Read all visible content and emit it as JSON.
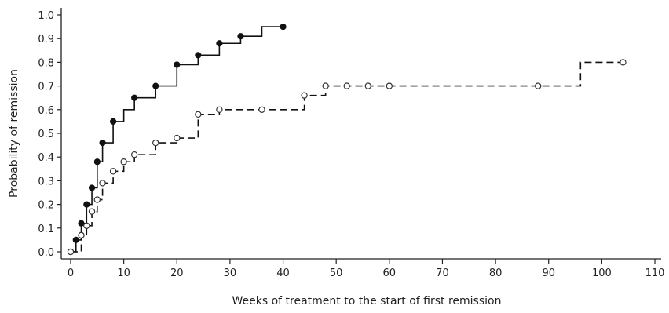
{
  "chart_data": {
    "type": "line",
    "step": true,
    "title": "",
    "xlabel": "Weeks of treatment to the start of first remission",
    "ylabel": "Probability of remission",
    "xlim": [
      0,
      110
    ],
    "ylim": [
      0,
      1.0
    ],
    "xticks": [
      0,
      10,
      20,
      30,
      40,
      50,
      60,
      70,
      80,
      90,
      100,
      110
    ],
    "yticks": [
      0.0,
      0.1,
      0.2,
      0.3,
      0.4,
      0.5,
      0.6,
      0.7,
      0.8,
      0.9,
      1.0
    ],
    "xtick_labels": [
      "0",
      "10",
      "20",
      "30",
      "40",
      "50",
      "60",
      "70",
      "80",
      "90",
      "100",
      "110"
    ],
    "ytick_labels": [
      "0.0",
      "0.1",
      "0.2",
      "0.3",
      "0.4",
      "0.5",
      "0.6",
      "0.7",
      "0.8",
      "0.9",
      "1.0"
    ],
    "grid": false,
    "series": [
      {
        "line_style": "solid",
        "marker": "filled-circle",
        "color": "#111111",
        "x": [
          0,
          1,
          2,
          3,
          4,
          5,
          6,
          8,
          10,
          12,
          16,
          20,
          24,
          28,
          32,
          36,
          40
        ],
        "y": [
          0.0,
          0.05,
          0.12,
          0.2,
          0.27,
          0.38,
          0.46,
          0.55,
          0.6,
          0.65,
          0.7,
          0.79,
          0.83,
          0.88,
          0.91,
          0.95,
          0.95
        ],
        "markers_x": [
          1,
          2,
          3,
          4,
          5,
          6,
          8,
          12,
          16,
          20,
          24,
          28,
          32,
          40
        ],
        "markers_y": [
          0.05,
          0.12,
          0.2,
          0.27,
          0.38,
          0.46,
          0.55,
          0.65,
          0.7,
          0.79,
          0.83,
          0.88,
          0.91,
          0.95
        ]
      },
      {
        "line_style": "dashed",
        "marker": "open-circle",
        "color": "#111111",
        "x": [
          0,
          2,
          3,
          4,
          5,
          6,
          8,
          10,
          12,
          16,
          20,
          24,
          28,
          36,
          44,
          48,
          52,
          56,
          60,
          88,
          96,
          104
        ],
        "y": [
          0.0,
          0.07,
          0.11,
          0.17,
          0.22,
          0.29,
          0.34,
          0.38,
          0.41,
          0.46,
          0.48,
          0.58,
          0.6,
          0.6,
          0.66,
          0.7,
          0.7,
          0.7,
          0.7,
          0.7,
          0.8,
          0.8
        ],
        "markers_x": [
          0,
          2,
          3,
          4,
          5,
          6,
          8,
          10,
          12,
          16,
          20,
          24,
          28,
          36,
          44,
          48,
          52,
          56,
          60,
          88,
          104
        ],
        "markers_y": [
          0.0,
          0.07,
          0.11,
          0.17,
          0.22,
          0.29,
          0.34,
          0.38,
          0.41,
          0.46,
          0.48,
          0.58,
          0.6,
          0.6,
          0.66,
          0.7,
          0.7,
          0.7,
          0.7,
          0.7,
          0.8
        ]
      }
    ]
  }
}
